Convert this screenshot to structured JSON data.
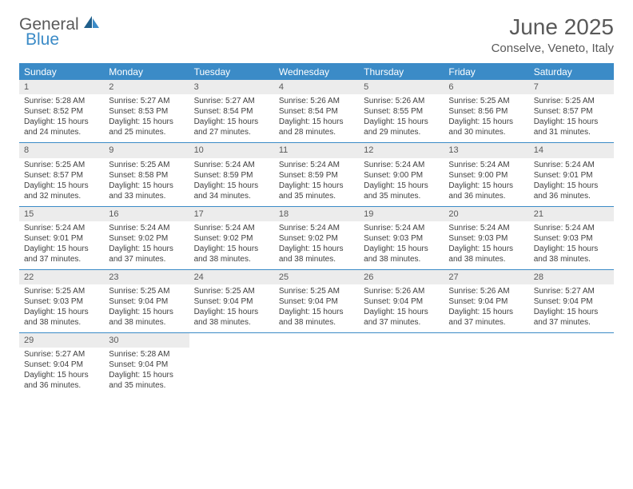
{
  "logo": {
    "general": "General",
    "blue": "Blue"
  },
  "title": "June 2025",
  "location": "Conselve, Veneto, Italy",
  "header_color": "#3b8bc7",
  "daynum_bg": "#ececec",
  "text_color": "#404040",
  "weekdays": [
    "Sunday",
    "Monday",
    "Tuesday",
    "Wednesday",
    "Thursday",
    "Friday",
    "Saturday"
  ],
  "weeks": [
    [
      {
        "n": "1",
        "sunrise": "Sunrise: 5:28 AM",
        "sunset": "Sunset: 8:52 PM",
        "d1": "Daylight: 15 hours",
        "d2": "and 24 minutes."
      },
      {
        "n": "2",
        "sunrise": "Sunrise: 5:27 AM",
        "sunset": "Sunset: 8:53 PM",
        "d1": "Daylight: 15 hours",
        "d2": "and 25 minutes."
      },
      {
        "n": "3",
        "sunrise": "Sunrise: 5:27 AM",
        "sunset": "Sunset: 8:54 PM",
        "d1": "Daylight: 15 hours",
        "d2": "and 27 minutes."
      },
      {
        "n": "4",
        "sunrise": "Sunrise: 5:26 AM",
        "sunset": "Sunset: 8:54 PM",
        "d1": "Daylight: 15 hours",
        "d2": "and 28 minutes."
      },
      {
        "n": "5",
        "sunrise": "Sunrise: 5:26 AM",
        "sunset": "Sunset: 8:55 PM",
        "d1": "Daylight: 15 hours",
        "d2": "and 29 minutes."
      },
      {
        "n": "6",
        "sunrise": "Sunrise: 5:25 AM",
        "sunset": "Sunset: 8:56 PM",
        "d1": "Daylight: 15 hours",
        "d2": "and 30 minutes."
      },
      {
        "n": "7",
        "sunrise": "Sunrise: 5:25 AM",
        "sunset": "Sunset: 8:57 PM",
        "d1": "Daylight: 15 hours",
        "d2": "and 31 minutes."
      }
    ],
    [
      {
        "n": "8",
        "sunrise": "Sunrise: 5:25 AM",
        "sunset": "Sunset: 8:57 PM",
        "d1": "Daylight: 15 hours",
        "d2": "and 32 minutes."
      },
      {
        "n": "9",
        "sunrise": "Sunrise: 5:25 AM",
        "sunset": "Sunset: 8:58 PM",
        "d1": "Daylight: 15 hours",
        "d2": "and 33 minutes."
      },
      {
        "n": "10",
        "sunrise": "Sunrise: 5:24 AM",
        "sunset": "Sunset: 8:59 PM",
        "d1": "Daylight: 15 hours",
        "d2": "and 34 minutes."
      },
      {
        "n": "11",
        "sunrise": "Sunrise: 5:24 AM",
        "sunset": "Sunset: 8:59 PM",
        "d1": "Daylight: 15 hours",
        "d2": "and 35 minutes."
      },
      {
        "n": "12",
        "sunrise": "Sunrise: 5:24 AM",
        "sunset": "Sunset: 9:00 PM",
        "d1": "Daylight: 15 hours",
        "d2": "and 35 minutes."
      },
      {
        "n": "13",
        "sunrise": "Sunrise: 5:24 AM",
        "sunset": "Sunset: 9:00 PM",
        "d1": "Daylight: 15 hours",
        "d2": "and 36 minutes."
      },
      {
        "n": "14",
        "sunrise": "Sunrise: 5:24 AM",
        "sunset": "Sunset: 9:01 PM",
        "d1": "Daylight: 15 hours",
        "d2": "and 36 minutes."
      }
    ],
    [
      {
        "n": "15",
        "sunrise": "Sunrise: 5:24 AM",
        "sunset": "Sunset: 9:01 PM",
        "d1": "Daylight: 15 hours",
        "d2": "and 37 minutes."
      },
      {
        "n": "16",
        "sunrise": "Sunrise: 5:24 AM",
        "sunset": "Sunset: 9:02 PM",
        "d1": "Daylight: 15 hours",
        "d2": "and 37 minutes."
      },
      {
        "n": "17",
        "sunrise": "Sunrise: 5:24 AM",
        "sunset": "Sunset: 9:02 PM",
        "d1": "Daylight: 15 hours",
        "d2": "and 38 minutes."
      },
      {
        "n": "18",
        "sunrise": "Sunrise: 5:24 AM",
        "sunset": "Sunset: 9:02 PM",
        "d1": "Daylight: 15 hours",
        "d2": "and 38 minutes."
      },
      {
        "n": "19",
        "sunrise": "Sunrise: 5:24 AM",
        "sunset": "Sunset: 9:03 PM",
        "d1": "Daylight: 15 hours",
        "d2": "and 38 minutes."
      },
      {
        "n": "20",
        "sunrise": "Sunrise: 5:24 AM",
        "sunset": "Sunset: 9:03 PM",
        "d1": "Daylight: 15 hours",
        "d2": "and 38 minutes."
      },
      {
        "n": "21",
        "sunrise": "Sunrise: 5:24 AM",
        "sunset": "Sunset: 9:03 PM",
        "d1": "Daylight: 15 hours",
        "d2": "and 38 minutes."
      }
    ],
    [
      {
        "n": "22",
        "sunrise": "Sunrise: 5:25 AM",
        "sunset": "Sunset: 9:03 PM",
        "d1": "Daylight: 15 hours",
        "d2": "and 38 minutes."
      },
      {
        "n": "23",
        "sunrise": "Sunrise: 5:25 AM",
        "sunset": "Sunset: 9:04 PM",
        "d1": "Daylight: 15 hours",
        "d2": "and 38 minutes."
      },
      {
        "n": "24",
        "sunrise": "Sunrise: 5:25 AM",
        "sunset": "Sunset: 9:04 PM",
        "d1": "Daylight: 15 hours",
        "d2": "and 38 minutes."
      },
      {
        "n": "25",
        "sunrise": "Sunrise: 5:25 AM",
        "sunset": "Sunset: 9:04 PM",
        "d1": "Daylight: 15 hours",
        "d2": "and 38 minutes."
      },
      {
        "n": "26",
        "sunrise": "Sunrise: 5:26 AM",
        "sunset": "Sunset: 9:04 PM",
        "d1": "Daylight: 15 hours",
        "d2": "and 37 minutes."
      },
      {
        "n": "27",
        "sunrise": "Sunrise: 5:26 AM",
        "sunset": "Sunset: 9:04 PM",
        "d1": "Daylight: 15 hours",
        "d2": "and 37 minutes."
      },
      {
        "n": "28",
        "sunrise": "Sunrise: 5:27 AM",
        "sunset": "Sunset: 9:04 PM",
        "d1": "Daylight: 15 hours",
        "d2": "and 37 minutes."
      }
    ],
    [
      {
        "n": "29",
        "sunrise": "Sunrise: 5:27 AM",
        "sunset": "Sunset: 9:04 PM",
        "d1": "Daylight: 15 hours",
        "d2": "and 36 minutes."
      },
      {
        "n": "30",
        "sunrise": "Sunrise: 5:28 AM",
        "sunset": "Sunset: 9:04 PM",
        "d1": "Daylight: 15 hours",
        "d2": "and 35 minutes."
      },
      null,
      null,
      null,
      null,
      null
    ]
  ]
}
